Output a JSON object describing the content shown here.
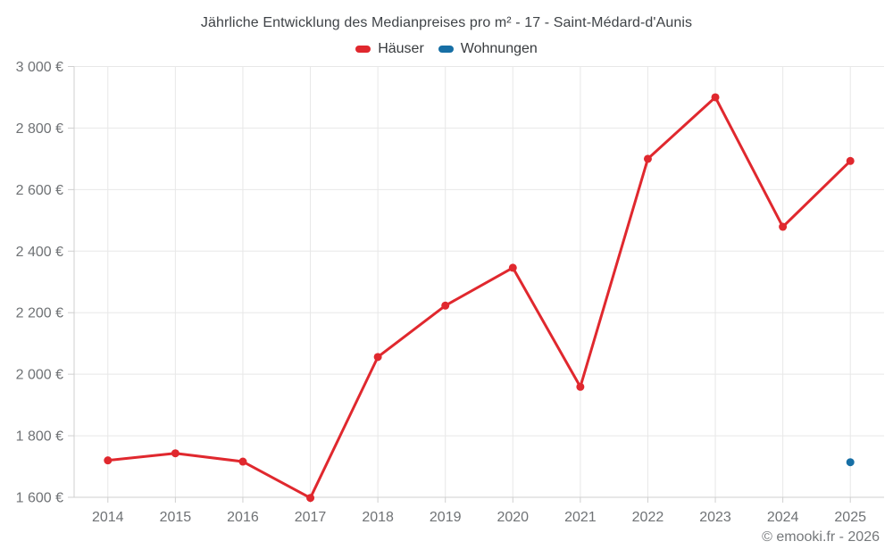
{
  "title": "Jährliche Entwicklung des Medianpreises pro m² - 17 - Saint-Médard-d'Aunis",
  "credit": "© emooki.fr - 2026",
  "chart_data": {
    "type": "line",
    "title": "Jährliche Entwicklung des Medianpreises pro m² - 17 - Saint-Médard-d'Aunis",
    "categories": [
      "2014",
      "2015",
      "2016",
      "2017",
      "2018",
      "2019",
      "2020",
      "2021",
      "2022",
      "2023",
      "2024",
      "2025"
    ],
    "series": [
      {
        "name": "Häuser",
        "color": "#e0282e",
        "values": [
          1720,
          1743,
          1716,
          1598,
          2056,
          2223,
          2346,
          1959,
          2700,
          2900,
          2479,
          2693
        ]
      },
      {
        "name": "Wohnungen",
        "color": "#176fa5",
        "values": [
          null,
          null,
          null,
          null,
          null,
          null,
          null,
          null,
          null,
          null,
          null,
          1714
        ]
      }
    ],
    "xlabel": "",
    "ylabel": "",
    "ylim": [
      1600,
      3000
    ],
    "ytick_step": 200,
    "ytick_suffix": " €",
    "grid": true,
    "legend_position": "top",
    "marker": "circle"
  }
}
